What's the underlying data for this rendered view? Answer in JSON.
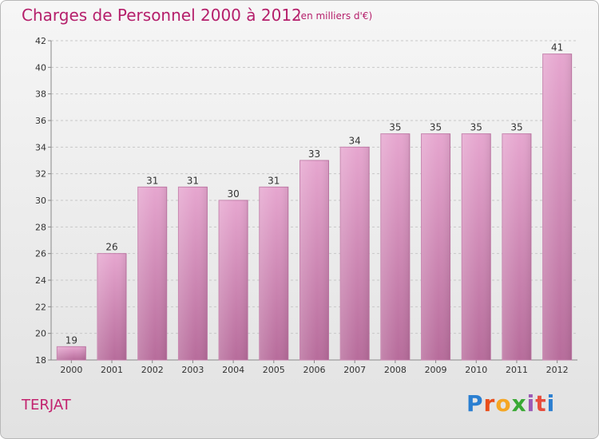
{
  "title": "Charges de Personnel 2000 à 2012",
  "subtitle": "(en milliers d'€)",
  "commune": "TERJAT",
  "brand": {
    "letters": [
      "P",
      "r",
      "o",
      "x",
      "i",
      "t",
      "i"
    ],
    "colors": [
      "#2b7fd1",
      "#e94e1b",
      "#f5a623",
      "#3aa935",
      "#9b59b6",
      "#e74c3c",
      "#2b7fd1"
    ]
  },
  "colors": {
    "bar": "#d98fbf",
    "bar_dark": "#b05a8e",
    "accent": "#b51f6b"
  },
  "chart_data": {
    "type": "bar",
    "categories": [
      "2000",
      "2001",
      "2002",
      "2003",
      "2004",
      "2005",
      "2006",
      "2007",
      "2008",
      "2009",
      "2010",
      "2011",
      "2012"
    ],
    "values": [
      19,
      26,
      31,
      31,
      30,
      31,
      33,
      34,
      35,
      35,
      35,
      35,
      41
    ],
    "data_labels": [
      "19",
      "26",
      "31",
      "31",
      "30",
      "31",
      "33",
      "34",
      "35",
      "35",
      "35",
      "35",
      "41"
    ],
    "ylim": [
      18,
      42
    ],
    "yticks": [
      18,
      20,
      22,
      24,
      26,
      28,
      30,
      32,
      34,
      36,
      38,
      40,
      42
    ],
    "grid": true,
    "title": "Charges de Personnel 2000 à 2012",
    "xlabel": "",
    "ylabel": ""
  }
}
